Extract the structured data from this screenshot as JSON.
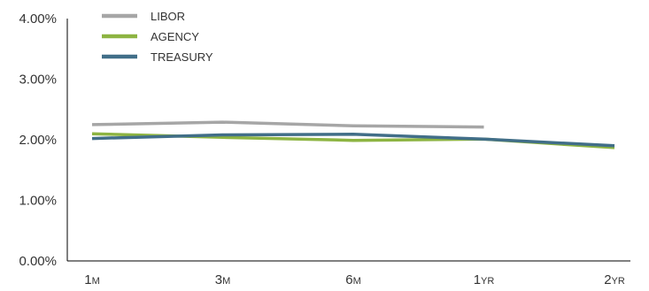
{
  "chart_data": {
    "type": "line",
    "categories": [
      {
        "num": "1",
        "unit": "M"
      },
      {
        "num": "3",
        "unit": "M"
      },
      {
        "num": "6",
        "unit": "M"
      },
      {
        "num": "1",
        "unit": "YR"
      },
      {
        "num": "2",
        "unit": "YR"
      }
    ],
    "ylim": [
      0,
      4
    ],
    "yticks": [
      "0.00%",
      "1.00%",
      "2.00%",
      "3.00%",
      "4.00%"
    ],
    "grid": false,
    "legend_position": "top-left",
    "series": [
      {
        "name": "LIBOR",
        "color": "#a6a6a6",
        "values": [
          2.25,
          2.29,
          2.23,
          2.21,
          null
        ]
      },
      {
        "name": "AGENCY",
        "color": "#8db442",
        "values": [
          2.1,
          2.04,
          1.99,
          2.01,
          1.87
        ]
      },
      {
        "name": "TREASURY",
        "color": "#416e88",
        "values": [
          2.02,
          2.08,
          2.09,
          2.01,
          1.9
        ]
      }
    ]
  }
}
